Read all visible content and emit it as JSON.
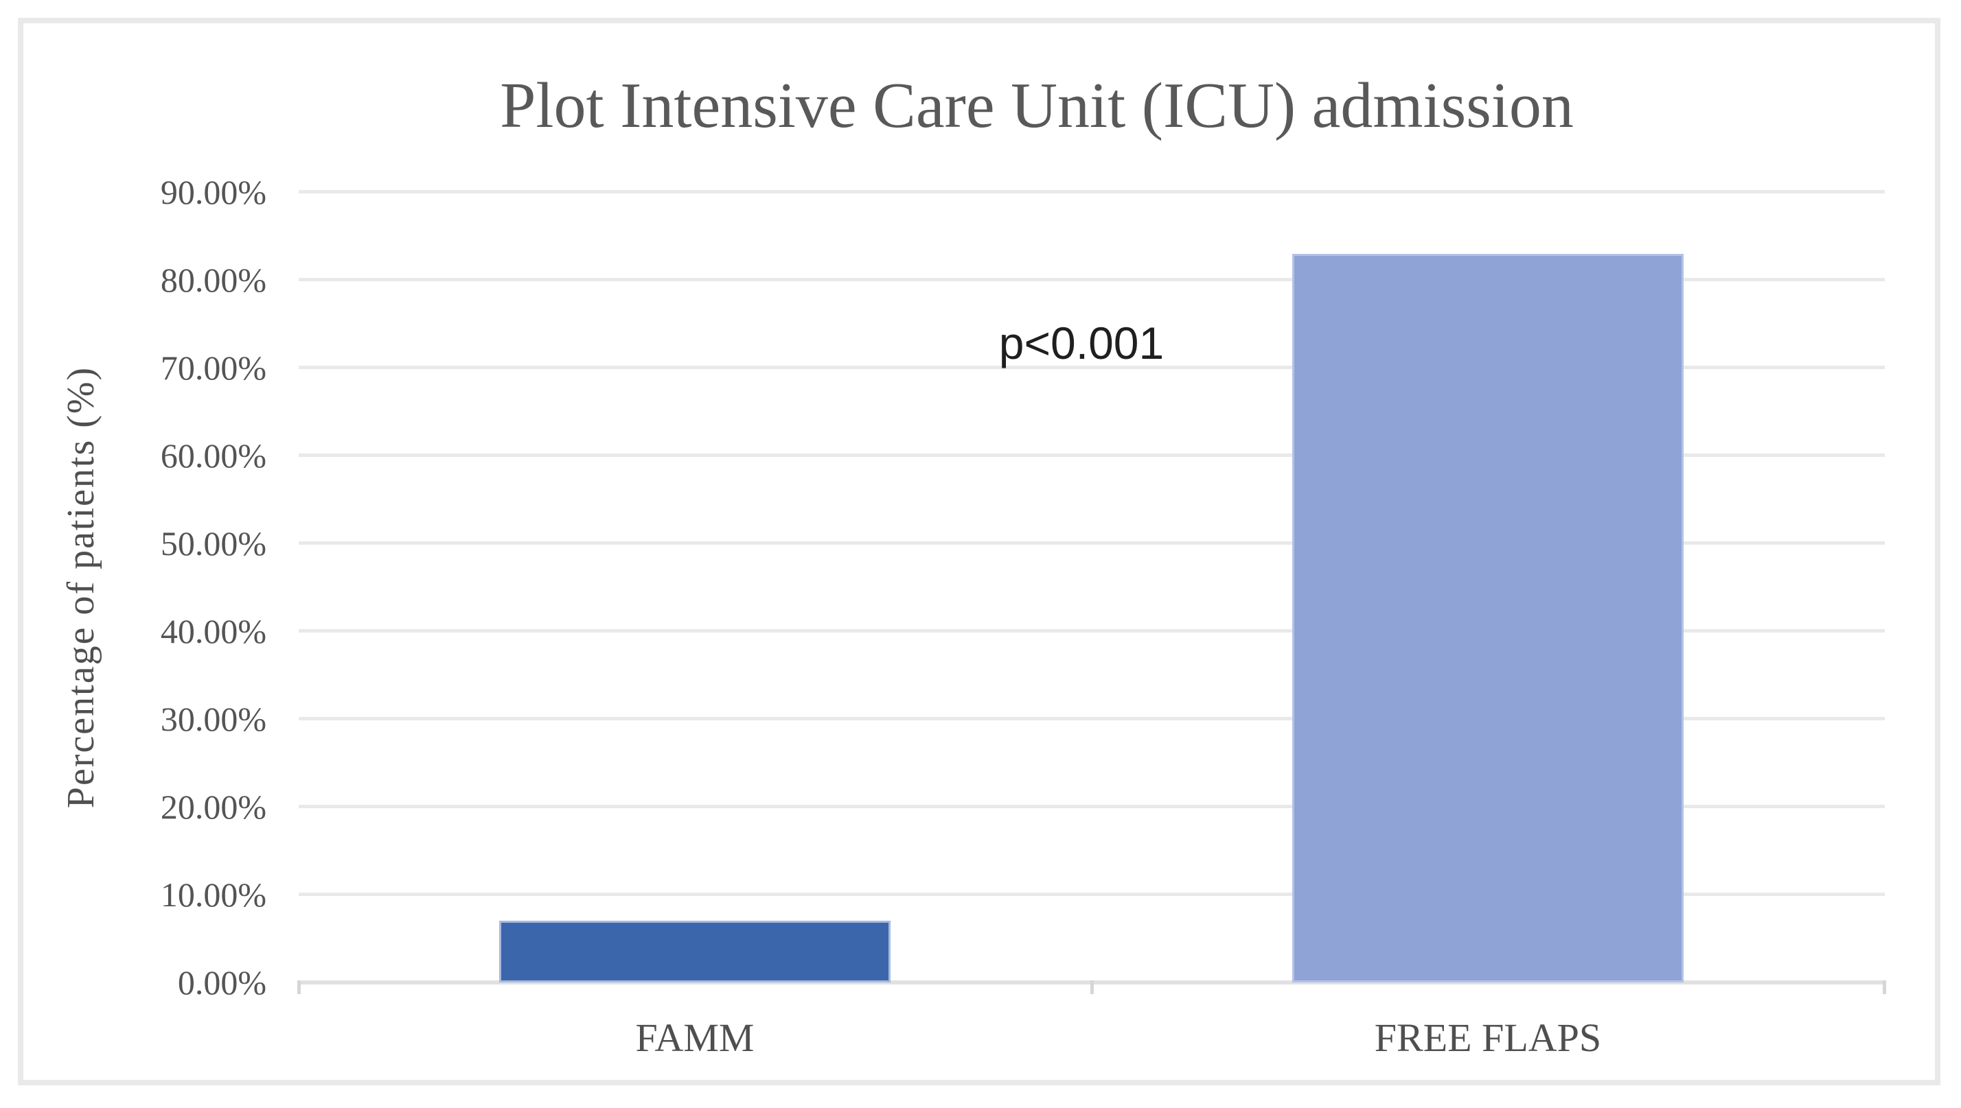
{
  "chart_data": {
    "type": "bar",
    "title": "Plot Intensive Care Unit (ICU) admission",
    "ylabel": "Percentage of patients (%)",
    "xlabel": "",
    "categories": [
      "FAMM",
      "FREE FLAPS"
    ],
    "values": [
      7,
      83
    ],
    "value_unit": "percent",
    "y_ticks": [
      "0.00%",
      "10.00%",
      "20.00%",
      "30.00%",
      "40.00%",
      "50.00%",
      "60.00%",
      "70.00%",
      "80.00%",
      "90.00%"
    ],
    "ylim": [
      0,
      90
    ],
    "grid": "horizontal-light-gray",
    "legend": "none",
    "annotation": {
      "text": "p<0.001"
    },
    "bar_colors": [
      "#3B66AC",
      "#8FA3D7"
    ],
    "bar_border_colors": [
      "#A7BBDE",
      "#B3C2E5"
    ],
    "colors": {
      "title_text": "#595959",
      "axis_text": "#4f4f4f",
      "gridline": "#e9e9e9",
      "frame_border": "#e9e9e9",
      "annotation_text": "#1f1f1f"
    }
  }
}
